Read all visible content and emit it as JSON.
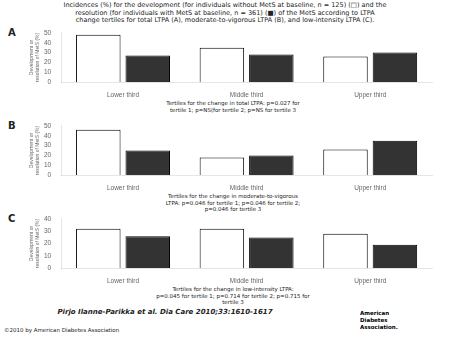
{
  "title": "Incidences (%) for the development (for individuals without MetS at baseline, n = 125) (□) and the\nresolution (for individuals with MetS at baseline, n = 361) (■) of the MetS according to LTPA\nchange tertiles for total LTPA (A), moderate-to-vigorous LTPA (B), and low-intensity LTPA (C).",
  "annotations": [
    "Pirjo Ilanne-Parikka et al. Dia Care 2010;33:1610-1617",
    "©2010 by American Diabetes Association",
    "American",
    "Diabetes",
    "Association."
  ],
  "chart_data": [
    {
      "type": "bar",
      "title": "A",
      "subtitle": "Tertiles for the change in total LTPA: p=0.027 for\ntertile 1; p=NS(for tertile 2; p=NS for tertile 3",
      "y_label": "Development or\nresolution of MetS (%)",
      "categories": [
        "Lower third",
        "Middle third",
        "Upper third"
      ],
      "series": [
        {
          "color": "#ffffff",
          "values": [
            48,
            35,
            26
          ]
        },
        {
          "color": "#333333",
          "values": [
            27,
            28,
            30
          ]
        }
      ],
      "ylim": [
        0,
        50
      ],
      "yticks": [
        0,
        10,
        20,
        30,
        40,
        50
      ],
      "grid": false
    },
    {
      "type": "bar",
      "title": "B",
      "subtitle": "Tertiles for the change in moderate-to-vigorous\nLTPA: p=0.046 for tertile 1; p=0.046 for tertile 2;\np=0.046 for tertile 3",
      "y_label": "Development or\nresolution of MetS (%)",
      "categories": [
        "Lower third",
        "Middle third",
        "Upper third"
      ],
      "series": [
        {
          "color": "#ffffff",
          "values": [
            46,
            18,
            26
          ]
        },
        {
          "color": "#333333",
          "values": [
            25,
            20,
            35
          ]
        }
      ],
      "ylim": [
        0,
        50
      ],
      "yticks": [
        0,
        10,
        20,
        30,
        40,
        50
      ],
      "grid": false
    },
    {
      "type": "bar",
      "title": "C",
      "subtitle": "Tertiles for the change in low-intensity LTPA:\np=0.045 for tertile 1; p=0.714 for tertile 2; p=0.715 for\ntertile 3",
      "y_label": "Development or\nresolution of MetS (%)",
      "categories": [
        "Lower third",
        "Middle third",
        "Upper third"
      ],
      "series": [
        {
          "color": "#ffffff",
          "values": [
            32,
            32,
            28
          ]
        },
        {
          "color": "#333333",
          "values": [
            26,
            25,
            19
          ]
        }
      ],
      "ylim": [
        0,
        40
      ],
      "yticks": [
        0,
        10,
        20,
        30,
        40
      ],
      "grid": false
    }
  ]
}
